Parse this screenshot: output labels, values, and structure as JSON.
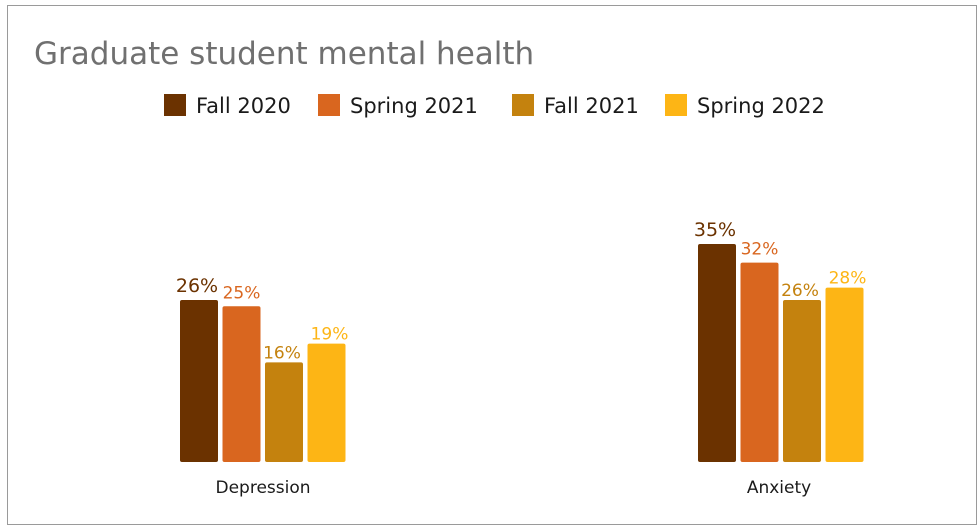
{
  "chart_data": {
    "type": "bar",
    "title": "Graduate student mental health",
    "categories": [
      "Depression",
      "Anxiety"
    ],
    "series": [
      {
        "name": "Fall 2020",
        "color": "#6b3200",
        "values": [
          26,
          35
        ],
        "labels": [
          "26%",
          "35%"
        ]
      },
      {
        "name": "Spring 2021",
        "color": "#d9661f",
        "values": [
          25,
          32
        ],
        "labels": [
          "25%",
          "32%"
        ]
      },
      {
        "name": "Fall 2021",
        "color": "#c4820e",
        "values": [
          16,
          26
        ],
        "labels": [
          "16%",
          "26%"
        ]
      },
      {
        "name": "Spring 2022",
        "color": "#fdb515",
        "values": [
          19,
          28
        ],
        "labels": [
          "19%",
          "28%"
        ]
      }
    ],
    "xlabel": "",
    "ylabel": "",
    "ylim": [
      0,
      35
    ],
    "grid": false,
    "legend_position": "top"
  }
}
